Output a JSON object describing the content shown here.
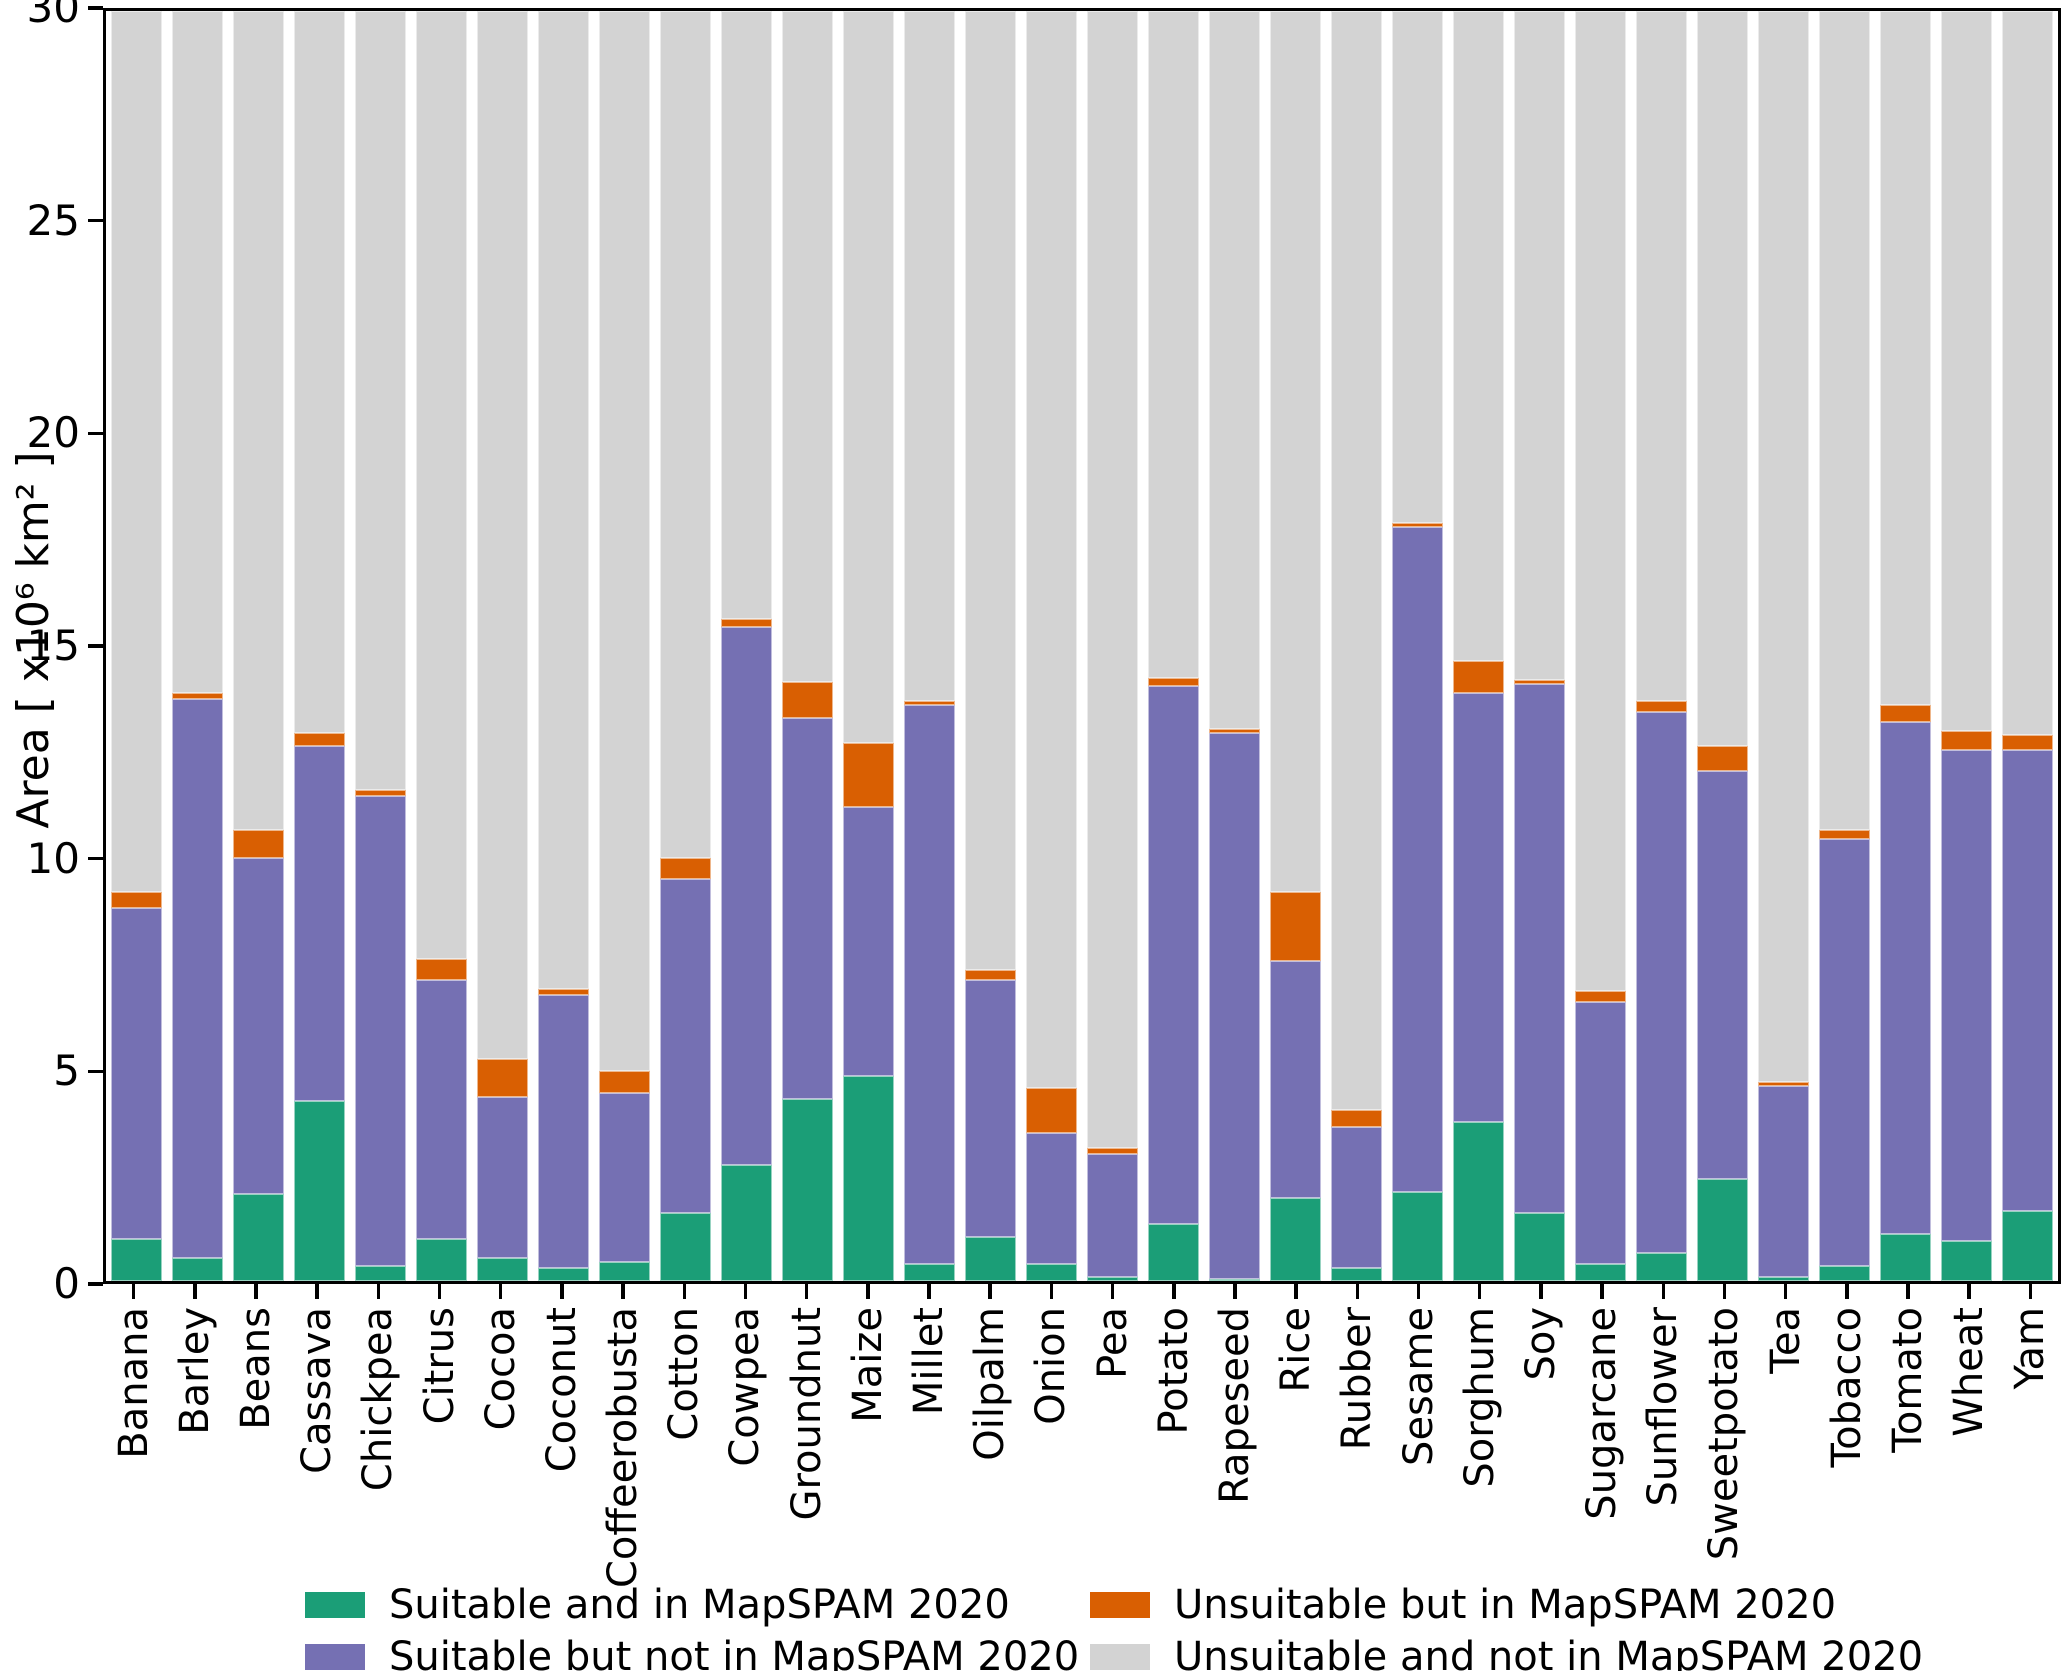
{
  "figure": {
    "background": "#ffffff"
  },
  "y_axis": {
    "label": "Area [ x10⁶ km² ]",
    "ticks": [
      0,
      5,
      10,
      15,
      20,
      25,
      30
    ],
    "max": 30
  },
  "colors": {
    "suitable_in": "#1b9e77",
    "suitable_not_in": "#7570b3",
    "unsuitable_in": "#d95f02",
    "unsuitable_not_in": "#d3d3d3",
    "axis": "#000000"
  },
  "chart_data": {
    "type": "bar",
    "stacked": true,
    "title": "",
    "xlabel": "",
    "ylabel": "Area [ x10⁶ km² ]",
    "ylim": [
      0,
      30
    ],
    "grid": false,
    "legend_position": "bottom-center",
    "categories": [
      "Banana",
      "Barley",
      "Beans",
      "Cassava",
      "Chickpea",
      "Citrus",
      "Cocoa",
      "Coconut",
      "Coffeerobusta",
      "Cotton",
      "Cowpea",
      "Groundnut",
      "Maize",
      "Millet",
      "Oilpalm",
      "Onion",
      "Pea",
      "Potato",
      "Rapeseed",
      "Rice",
      "Rubber",
      "Sesame",
      "Sorghum",
      "Soy",
      "Sugarcane",
      "Sunflower",
      "Sweetpotato",
      "Tea",
      "Tobacco",
      "Tomato",
      "Wheat",
      "Yam"
    ],
    "series": [
      {
        "name": "Suitable and in MapSPAM 2020",
        "color": "#1b9e77",
        "values": [
          1.0,
          0.55,
          2.05,
          4.25,
          0.35,
          1.0,
          0.55,
          0.3,
          0.45,
          1.6,
          2.75,
          4.3,
          4.85,
          0.4,
          1.05,
          0.4,
          0.1,
          1.35,
          0.05,
          1.95,
          0.3,
          2.1,
          3.75,
          1.6,
          0.4,
          0.65,
          2.4,
          0.1,
          0.35,
          1.1,
          0.95,
          1.65
        ]
      },
      {
        "name": "Suitable but not in MapSPAM 2020",
        "color": "#7570b3",
        "values": [
          7.8,
          13.2,
          7.95,
          8.4,
          11.1,
          6.1,
          3.8,
          6.45,
          4.0,
          7.9,
          12.7,
          9.0,
          6.35,
          13.2,
          6.05,
          3.1,
          2.9,
          12.7,
          12.9,
          5.6,
          3.35,
          15.7,
          10.15,
          12.5,
          6.2,
          12.8,
          9.65,
          4.5,
          10.1,
          12.1,
          11.6,
          10.9
        ]
      },
      {
        "name": "Unsuitable but in MapSPAM 2020",
        "color": "#d95f02",
        "values": [
          0.4,
          0.15,
          0.65,
          0.3,
          0.15,
          0.5,
          0.9,
          0.15,
          0.5,
          0.5,
          0.2,
          0.85,
          1.5,
          0.1,
          0.25,
          1.05,
          0.15,
          0.2,
          0.1,
          1.65,
          0.4,
          0.1,
          0.75,
          0.1,
          0.25,
          0.25,
          0.6,
          0.1,
          0.2,
          0.4,
          0.45,
          0.35
        ]
      },
      {
        "name": "Unsuitable and not in MapSPAM 2020",
        "color": "#d3d3d3",
        "values": [
          20.8,
          16.1,
          19.35,
          17.05,
          18.4,
          22.4,
          24.75,
          23.1,
          25.05,
          20.0,
          14.35,
          15.85,
          17.3,
          16.3,
          22.65,
          25.45,
          26.85,
          15.75,
          16.95,
          20.8,
          25.95,
          12.1,
          15.35,
          15.8,
          23.15,
          16.3,
          17.35,
          25.3,
          19.35,
          16.4,
          17.0,
          17.1
        ]
      }
    ]
  },
  "legend": {
    "items": [
      {
        "label": "Suitable and in MapSPAM 2020",
        "color": "#1b9e77"
      },
      {
        "label": "Unsuitable but in MapSPAM 2020",
        "color": "#d95f02"
      },
      {
        "label": "Suitable but not in MapSPAM 2020",
        "color": "#7570b3"
      },
      {
        "label": "Unsuitable and not in MapSPAM 2020",
        "color": "#d3d3d3"
      }
    ]
  }
}
